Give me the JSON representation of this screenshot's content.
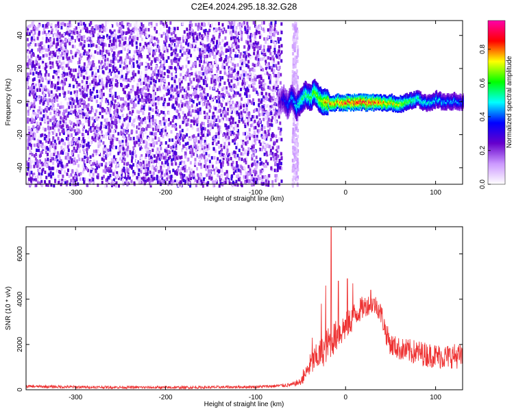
{
  "title": "C2E4.2024.295.18.32.G28",
  "chart_data": [
    {
      "type": "heatmap",
      "xlabel": "Height of straight line (km)",
      "ylabel": "Frequency (Hz)",
      "xlim": [
        -355,
        130
      ],
      "ylim": [
        -50,
        49
      ],
      "xticks": [
        -300,
        -200,
        -100,
        0,
        100
      ],
      "yticks": [
        -40,
        -20,
        0,
        20,
        40
      ],
      "colorbar": {
        "label": "Normalized spectral amplitude",
        "range": [
          0,
          0.97
        ],
        "ticks": [
          0.0,
          0.2,
          0.4,
          0.6,
          0.8
        ],
        "colors": [
          "#ffffff",
          "#cc99ff",
          "#6600cc",
          "#0000ff",
          "#00ffff",
          "#00ff00",
          "#ffff00",
          "#ff0000",
          "#ff00aa"
        ]
      },
      "noise_region": {
        "x": [
          -355,
          -72
        ],
        "amplitude_range": [
          0.0,
          0.3
        ]
      },
      "gap_region": {
        "x": [
          -72,
          -55
        ]
      },
      "signal_track": {
        "x": [
          -75,
          -70,
          -65,
          -60,
          -55,
          -50,
          -45,
          -40,
          -35,
          -30,
          -25,
          -20,
          -15,
          -10,
          0,
          10,
          20,
          30,
          40,
          50,
          60,
          70,
          80,
          90,
          100,
          110,
          120,
          130
        ],
        "frequency": [
          0,
          3,
          -2,
          4,
          -3,
          2,
          5,
          3,
          6,
          2,
          0,
          1,
          -1,
          0,
          0,
          0,
          0,
          0,
          0,
          0,
          -1,
          1,
          2,
          -1,
          2,
          0,
          1,
          0
        ],
        "amplitude": [
          0.25,
          0.35,
          0.4,
          0.45,
          0.5,
          0.55,
          0.6,
          0.6,
          0.65,
          0.7,
          0.75,
          0.8,
          0.8,
          0.82,
          0.85,
          0.88,
          0.88,
          0.85,
          0.8,
          0.75,
          0.7,
          0.6,
          0.55,
          0.5,
          0.5,
          0.45,
          0.45,
          0.4
        ]
      }
    },
    {
      "type": "line",
      "xlabel": "Height of straight line (km)",
      "ylabel": "SNR (10 * v/v)",
      "xlim": [
        -355,
        130
      ],
      "ylim": [
        0,
        7200
      ],
      "xticks": [
        -300,
        -200,
        -100,
        0,
        100
      ],
      "yticks": [
        0,
        2000,
        4000,
        6000
      ],
      "grid": false,
      "series": [
        {
          "color": "#ee3333",
          "x": [
            -355,
            -300,
            -250,
            -200,
            -150,
            -100,
            -80,
            -60,
            -50,
            -45,
            -40,
            -35,
            -30,
            -25,
            -20,
            -15,
            -10,
            -5,
            0,
            5,
            10,
            15,
            20,
            25,
            30,
            35,
            40,
            45,
            50,
            60,
            70,
            80,
            90,
            100,
            110,
            120,
            130
          ],
          "y": [
            150,
            120,
            110,
            100,
            110,
            130,
            160,
            220,
            350,
            650,
            1050,
            1300,
            1500,
            1700,
            2000,
            2200,
            2400,
            2600,
            2800,
            3000,
            3300,
            3500,
            3650,
            3750,
            3800,
            3700,
            3300,
            2500,
            2000,
            1800,
            1700,
            1650,
            1550,
            1500,
            1450,
            1500,
            1450
          ],
          "spread": [
            60,
            60,
            60,
            60,
            60,
            60,
            70,
            90,
            150,
            300,
            500,
            600,
            650,
            700,
            750,
            750,
            700,
            700,
            650,
            600,
            600,
            550,
            500,
            450,
            450,
            450,
            500,
            500,
            500,
            500,
            550,
            550,
            550,
            550,
            550,
            550,
            550
          ],
          "peaks": [
            {
              "x": -47,
              "y": 900
            },
            {
              "x": -37,
              "y": 2300
            },
            {
              "x": -27,
              "y": 3800
            },
            {
              "x": -22,
              "y": 4600
            },
            {
              "x": -16,
              "y": 7200
            },
            {
              "x": -8,
              "y": 4800
            },
            {
              "x": 2,
              "y": 4900
            },
            {
              "x": 8,
              "y": 4700
            },
            {
              "x": 28,
              "y": 4400
            }
          ]
        }
      ]
    }
  ]
}
